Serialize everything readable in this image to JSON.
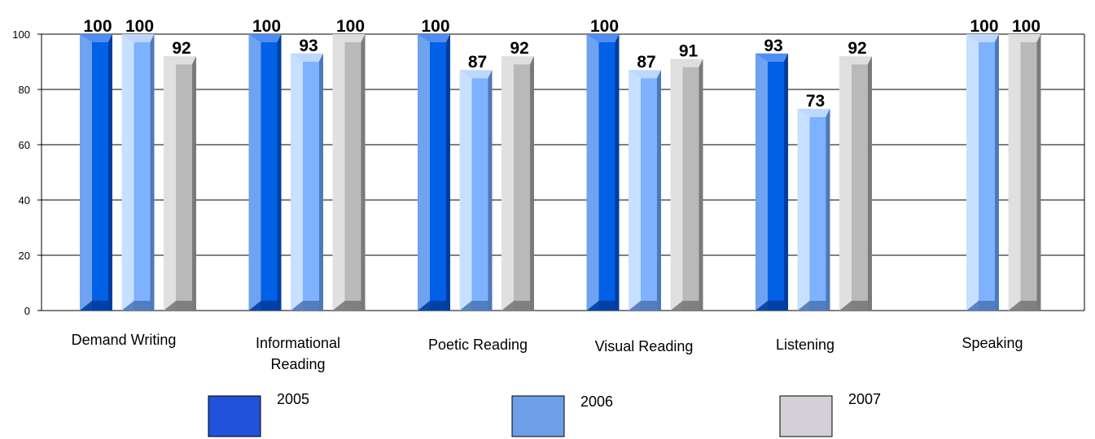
{
  "chart_data": {
    "type": "bar",
    "categories": [
      "Demand Writing",
      "Informational Reading",
      "Poetic Reading",
      "Visual Reading",
      "Listening",
      "Speaking"
    ],
    "category_lines": [
      [
        "Demand Writing"
      ],
      [
        "Informational",
        "Reading"
      ],
      [
        "Poetic Reading"
      ],
      [
        "Visual Reading"
      ],
      [
        "Listening"
      ],
      [
        "Speaking"
      ]
    ],
    "series": [
      {
        "name": "2005",
        "values": [
          100,
          100,
          100,
          100,
          93,
          null
        ]
      },
      {
        "name": "2006",
        "values": [
          100,
          93,
          87,
          87,
          73,
          100
        ]
      },
      {
        "name": "2007",
        "values": [
          92,
          100,
          92,
          91,
          92,
          100
        ]
      }
    ],
    "ylim": [
      0,
      100
    ],
    "yticks": [
      "0",
      "20",
      "40",
      "60",
      "80",
      "100"
    ],
    "grid": true,
    "legend_position": "bottom",
    "legend_swatches": [
      "#2152D9",
      "#6E9EE8",
      "#D4D0D8"
    ],
    "series_colors": [
      {
        "front": "#0060E6",
        "side": "#003E9E",
        "top": "#4F8EF0",
        "panel": "#6FA2F0"
      },
      {
        "front": "#7EB1FF",
        "side": "#4E79B8",
        "top": "#BDD8FF",
        "panel": "#C8E0FF"
      },
      {
        "front": "#B9B9B9",
        "side": "#7A7A7A",
        "top": "#DEDEDE",
        "panel": "#E0E0E0"
      }
    ]
  }
}
